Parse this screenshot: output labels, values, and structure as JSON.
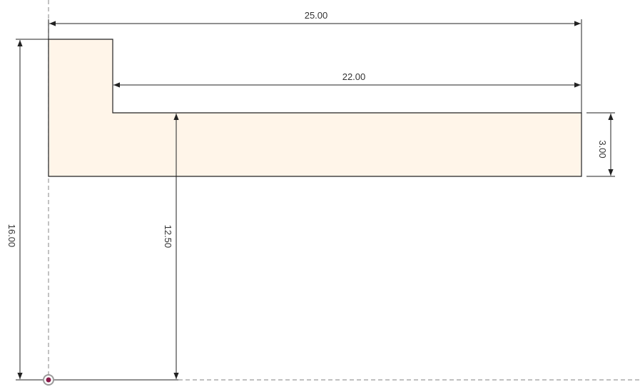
{
  "sketch": {
    "profile_fill": "#fff5e9",
    "line_color": "#222222",
    "axis_color": "#9a9a9a",
    "origin_color": "#8a1a4a",
    "dimensions": {
      "overall_width": "25.00",
      "inner_width": "22.00",
      "flange_thickness": "3.00",
      "overall_height": "16.00",
      "offset_height": "12.50"
    }
  }
}
